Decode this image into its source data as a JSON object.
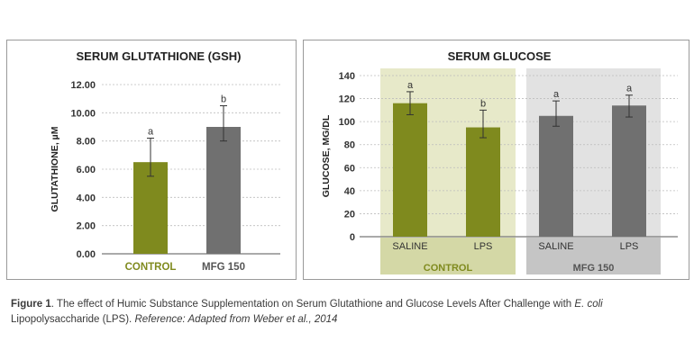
{
  "chart_data": [
    {
      "type": "bar",
      "title": "SERUM GLUTATHIONE (GSH)",
      "ylabel": "GLUTATHIONE, µM",
      "categories": [
        "CONTROL",
        "MFG 150"
      ],
      "values": [
        6.5,
        9.0
      ],
      "error_low": [
        5.5,
        8.0
      ],
      "error_high": [
        8.2,
        10.5
      ],
      "significance": [
        "a",
        "b"
      ],
      "yticks": [
        "0.00",
        "2.00",
        "4.00",
        "6.00",
        "8.00",
        "10.00",
        "12.00"
      ],
      "ylim": [
        0,
        12
      ],
      "colors": [
        "#7f8a1e",
        "#707070"
      ],
      "grid": true
    },
    {
      "type": "bar",
      "title": "SERUM GLUCOSE",
      "ylabel": "GLUCOSE, MG/DL",
      "categories": [
        "SALINE",
        "LPS",
        "SALINE",
        "LPS"
      ],
      "groups": [
        "CONTROL",
        "MFG 150"
      ],
      "values": [
        116,
        95,
        105,
        114
      ],
      "error_low": [
        106,
        86,
        96,
        104
      ],
      "error_high": [
        126,
        110,
        118,
        123
      ],
      "significance": [
        "a",
        "b",
        "a",
        "a"
      ],
      "yticks": [
        "0",
        "20",
        "40",
        "60",
        "80",
        "100",
        "120",
        "140"
      ],
      "ylim": [
        0,
        140
      ],
      "colors": [
        "#7f8a1e",
        "#7f8a1e",
        "#707070",
        "#707070"
      ],
      "grid": true
    }
  ],
  "caption": {
    "figure_label": "Figure 1",
    "text_main": ". The effect of Humic Substance Supplementation on Serum Glutathione and Glucose Levels After Challenge with ",
    "organism": "E. coli",
    "text_tail": " Lipopolysaccharide (LPS).  ",
    "reference": "Reference: Adapted from Weber et al., 2014"
  }
}
